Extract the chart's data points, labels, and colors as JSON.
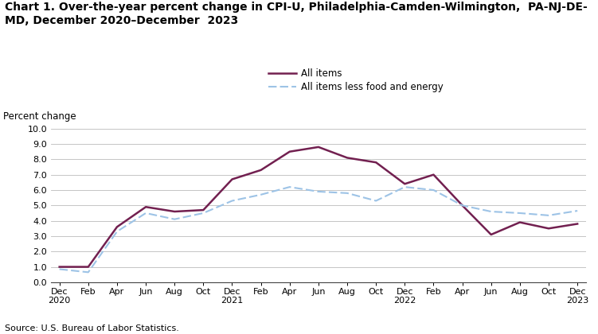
{
  "title_line1": "Chart 1. Over-the-year percent change in CPI-U, Philadelphia-Camden-Wilmington,  PA-NJ-DE-",
  "title_line2": "MD, December 2020–December  2023",
  "ylabel": "Percent change",
  "source": "Source: U.S. Bureau of Labor Statistics.",
  "legend_all_items": "All items",
  "legend_core": "All items less food and energy",
  "x_labels": [
    "Dec\n2020",
    "Feb",
    "Apr",
    "Jun",
    "Aug",
    "Oct",
    "Dec\n2021",
    "Feb",
    "Apr",
    "Jun",
    "Aug",
    "Oct",
    "Dec\n2022",
    "Feb",
    "Apr",
    "Jun",
    "Aug",
    "Oct",
    "Dec\n2023"
  ],
  "ylim": [
    0.0,
    10.0
  ],
  "yticks": [
    0.0,
    1.0,
    2.0,
    3.0,
    4.0,
    5.0,
    6.0,
    7.0,
    8.0,
    9.0,
    10.0
  ],
  "all_items": [
    1.0,
    1.0,
    3.6,
    4.9,
    4.6,
    4.7,
    6.7,
    7.3,
    8.5,
    8.8,
    8.1,
    7.8,
    6.4,
    7.0,
    5.0,
    3.1,
    3.9,
    3.5,
    3.8
  ],
  "core_items": [
    0.85,
    0.65,
    3.3,
    4.5,
    4.1,
    4.5,
    5.3,
    5.7,
    6.2,
    5.9,
    5.8,
    5.3,
    6.2,
    6.0,
    5.0,
    4.6,
    4.5,
    4.35,
    4.65
  ],
  "all_items_color": "#722050",
  "core_items_color": "#9DC3E6",
  "background_color": "#ffffff",
  "grid_color": "#bbbbbb",
  "title_fontsize": 10,
  "label_fontsize": 8.5,
  "tick_fontsize": 8,
  "source_fontsize": 8
}
